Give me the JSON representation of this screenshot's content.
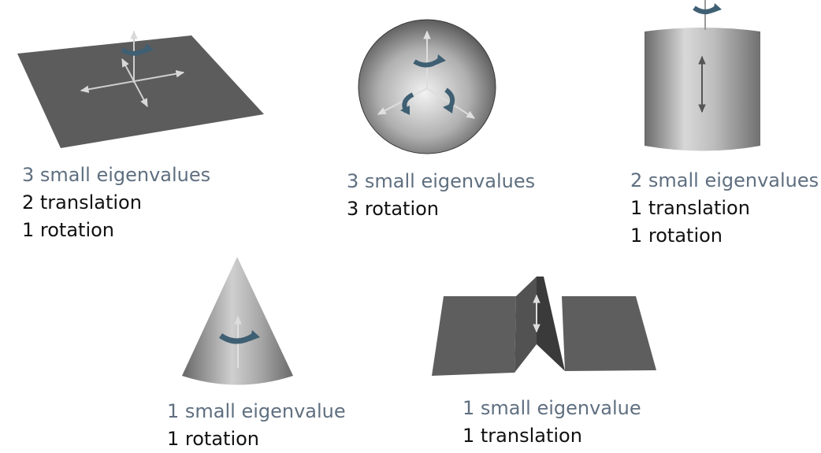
{
  "panels": {
    "plane": {
      "label": "3 small eigenvalues",
      "lines": [
        "2 translation",
        "1 rotation"
      ]
    },
    "sphere": {
      "label": "3 small eigenvalues",
      "lines": [
        "3 rotation"
      ]
    },
    "cylinder": {
      "label": "2 small eigenvalues",
      "lines": [
        "1 translation",
        "1 rotation"
      ]
    },
    "cone": {
      "label": "1 small eigenvalue",
      "lines": [
        "1 rotation"
      ]
    },
    "ridge": {
      "label": "1 small eigenvalue",
      "lines": [
        "1 translation"
      ]
    }
  },
  "colors": {
    "label_gray": "#5f6f80",
    "text_dark": "#111111",
    "surface": "#5a5a5a",
    "arrow": "#cfcfcf",
    "rotation_arrow": "#3f5f73"
  }
}
